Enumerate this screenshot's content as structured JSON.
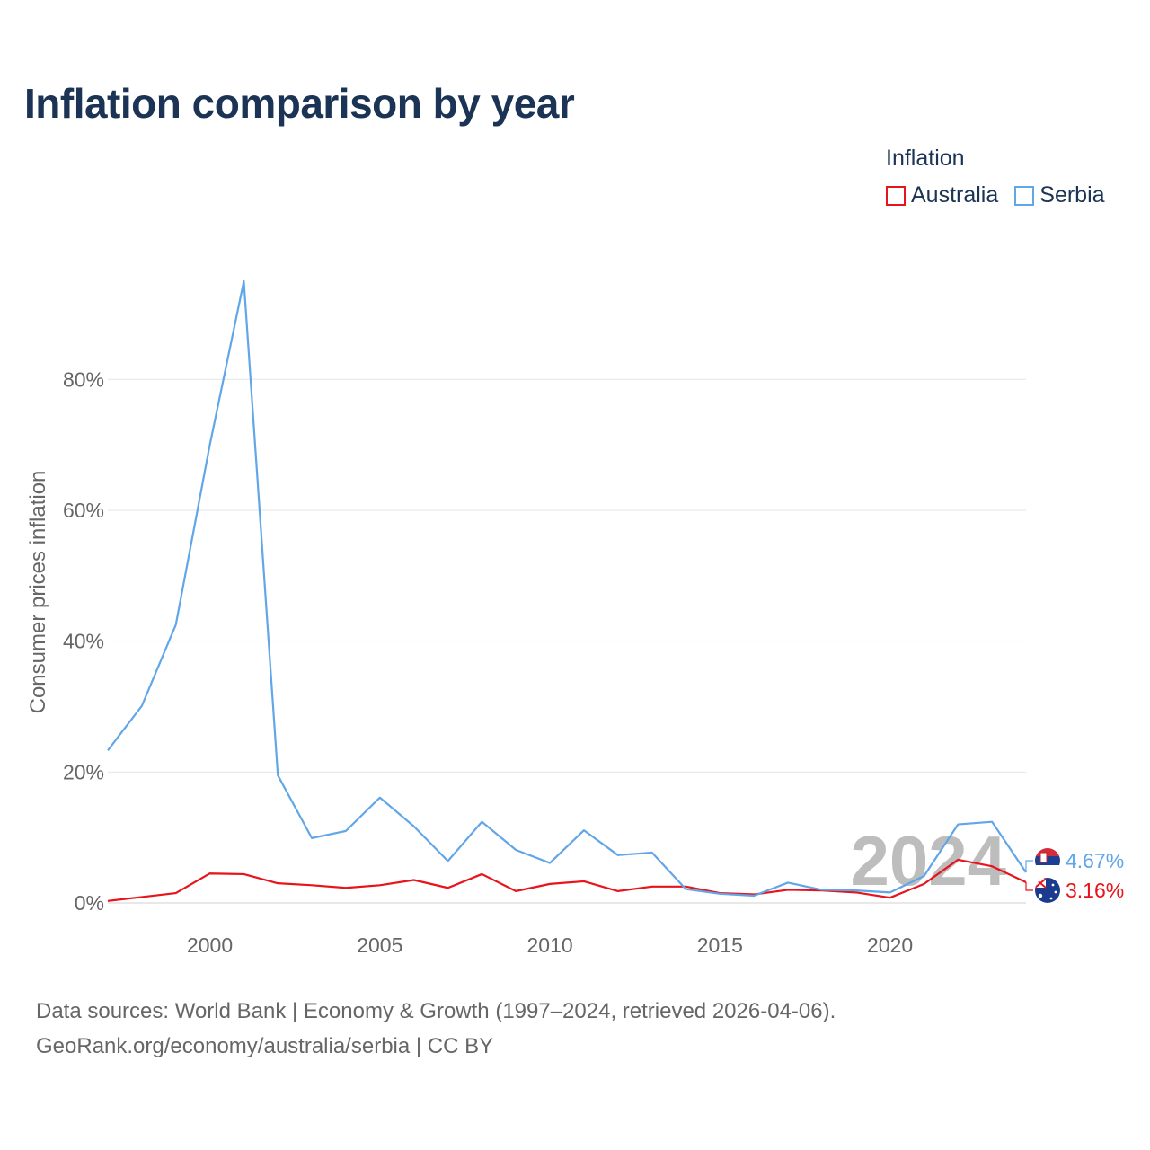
{
  "title": "Inflation comparison by year",
  "legend": {
    "title": "Inflation",
    "items": [
      {
        "label": "Australia",
        "color": "#e8131b"
      },
      {
        "label": "Serbia",
        "color": "#61a6e8"
      }
    ]
  },
  "year_label": "2024",
  "end_labels": {
    "australia": "3.16%",
    "serbia": "4.67%"
  },
  "source": {
    "line1": "Data sources: World Bank | Economy & Growth (1997–2024, retrieved 2026-04-06).",
    "line2": "GeoRank.org/economy/australia/serbia | CC BY"
  },
  "chart_data": {
    "type": "line",
    "title": "Inflation comparison by year",
    "xlabel": "",
    "ylabel": "Consumer prices inflation",
    "x": [
      1997,
      1998,
      1999,
      2000,
      2001,
      2002,
      2003,
      2004,
      2005,
      2006,
      2007,
      2008,
      2009,
      2010,
      2011,
      2012,
      2013,
      2014,
      2015,
      2016,
      2017,
      2018,
      2019,
      2020,
      2021,
      2022,
      2023,
      2024
    ],
    "xlim": [
      1997,
      2024
    ],
    "ylim": [
      0,
      95
    ],
    "xticks": [
      2000,
      2005,
      2010,
      2015,
      2020
    ],
    "yticks": [
      0,
      20,
      40,
      60,
      80
    ],
    "ytick_labels": [
      "0%",
      "20%",
      "40%",
      "60%",
      "80%"
    ],
    "grid": true,
    "legend_position": "top-right",
    "series": [
      {
        "name": "Australia",
        "color": "#e8131b",
        "values": [
          0.3,
          0.9,
          1.5,
          4.5,
          4.4,
          3.0,
          2.7,
          2.3,
          2.7,
          3.5,
          2.3,
          4.4,
          1.8,
          2.9,
          3.3,
          1.8,
          2.5,
          2.5,
          1.5,
          1.3,
          2.0,
          1.9,
          1.6,
          0.8,
          2.9,
          6.6,
          5.6,
          3.16
        ]
      },
      {
        "name": "Serbia",
        "color": "#61a6e8",
        "values": [
          23.3,
          30.1,
          42.5,
          70.0,
          95.0,
          19.5,
          9.9,
          11.0,
          16.1,
          11.7,
          6.4,
          12.4,
          8.1,
          6.1,
          11.1,
          7.3,
          7.7,
          2.1,
          1.4,
          1.1,
          3.1,
          2.0,
          1.9,
          1.6,
          4.1,
          12.0,
          12.4,
          4.67
        ]
      }
    ]
  }
}
